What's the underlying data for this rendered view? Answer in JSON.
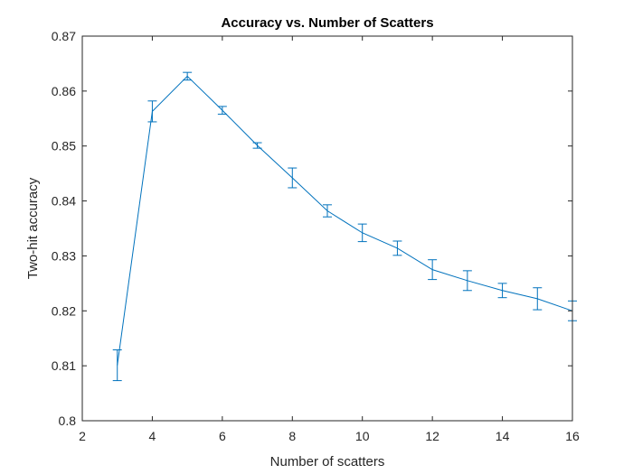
{
  "chart_data": {
    "type": "line",
    "title": "Accuracy vs. Number of Scatters",
    "xlabel": "Number of scatters",
    "ylabel": "Two-hit accuracy",
    "xlim": [
      2,
      16
    ],
    "ylim": [
      0.8,
      0.87
    ],
    "xticks": [
      2,
      4,
      6,
      8,
      10,
      12,
      14,
      16
    ],
    "yticks": [
      0.8,
      0.81,
      0.82,
      0.83,
      0.84,
      0.85,
      0.86,
      0.87
    ],
    "xtick_labels": [
      "2",
      "4",
      "6",
      "8",
      "10",
      "12",
      "14",
      "16"
    ],
    "ytick_labels": [
      "0.8",
      "0.81",
      "0.82",
      "0.83",
      "0.84",
      "0.85",
      "0.86",
      "0.87"
    ],
    "grid": false,
    "color": "#0072BD",
    "series": [
      {
        "x": [
          3,
          4,
          5,
          6,
          7,
          8,
          9,
          10,
          11,
          12,
          13,
          14,
          15,
          16
        ],
        "y": [
          0.8101,
          0.8563,
          0.8627,
          0.8565,
          0.8501,
          0.8442,
          0.8382,
          0.8342,
          0.8314,
          0.8275,
          0.8255,
          0.8237,
          0.8222,
          0.82
        ],
        "err": [
          0.0028,
          0.0019,
          0.0007,
          0.0007,
          0.0005,
          0.0018,
          0.0011,
          0.0016,
          0.0013,
          0.0018,
          0.0018,
          0.0013,
          0.002,
          0.0018
        ]
      }
    ]
  }
}
